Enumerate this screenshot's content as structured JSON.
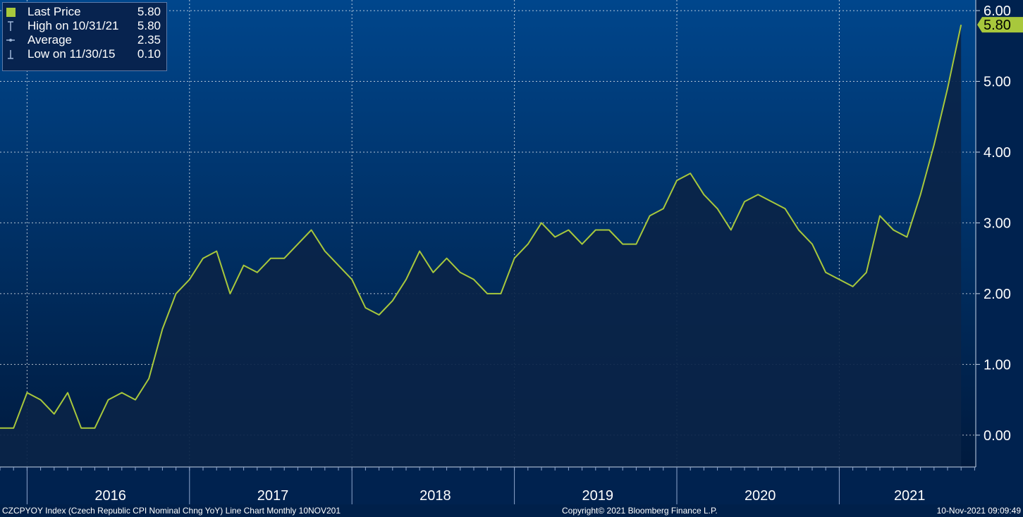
{
  "legend": {
    "items": [
      {
        "label": "Last Price",
        "value": "5.80"
      },
      {
        "label": "High on 10/31/21",
        "value": "5.80"
      },
      {
        "label": "Average",
        "value": "2.35"
      },
      {
        "label": "Low on 11/30/15",
        "value": "0.10"
      }
    ]
  },
  "footer": {
    "left": "CZCPYOY Index (Czech Republic CPI Nominal Chng YoY) Line Chart  Monthly 10NOV201",
    "center": "Copyright© 2021 Bloomberg Finance L.P.",
    "right": "10-Nov-2021 09:09:49"
  },
  "colors": {
    "line": "#a8c83c",
    "fill": "#0a2448",
    "background_top": "#00468c",
    "background_bottom": "#001a3e"
  },
  "chart_data": {
    "type": "area",
    "x_start": "2015-11",
    "x_end": "2021-10",
    "frequency": "Monthly",
    "ylim": [
      -0.45,
      6.15
    ],
    "yticks": [
      "0.00",
      "1.00",
      "2.00",
      "3.00",
      "4.00",
      "5.00",
      "6.00"
    ],
    "year_labels": [
      "2016",
      "2017",
      "2018",
      "2019",
      "2020",
      "2021"
    ],
    "last_value_label": "5.80",
    "grid": true,
    "series": [
      {
        "name": "Last Price",
        "values": [
          0.1,
          0.1,
          0.6,
          0.5,
          0.3,
          0.6,
          0.1,
          0.1,
          0.5,
          0.6,
          0.5,
          0.8,
          1.5,
          2.0,
          2.2,
          2.5,
          2.6,
          2.0,
          2.4,
          2.3,
          2.5,
          2.5,
          2.7,
          2.9,
          2.6,
          2.4,
          2.2,
          1.8,
          1.7,
          1.9,
          2.2,
          2.6,
          2.3,
          2.5,
          2.3,
          2.2,
          2.0,
          2.0,
          2.5,
          2.7,
          3.0,
          2.8,
          2.9,
          2.7,
          2.9,
          2.9,
          2.7,
          2.7,
          3.1,
          3.2,
          3.6,
          3.7,
          3.4,
          3.2,
          2.9,
          3.3,
          3.4,
          3.3,
          3.2,
          2.9,
          2.7,
          2.3,
          2.2,
          2.1,
          2.3,
          3.1,
          2.9,
          2.8,
          3.4,
          4.1,
          4.9,
          5.8
        ]
      }
    ]
  }
}
